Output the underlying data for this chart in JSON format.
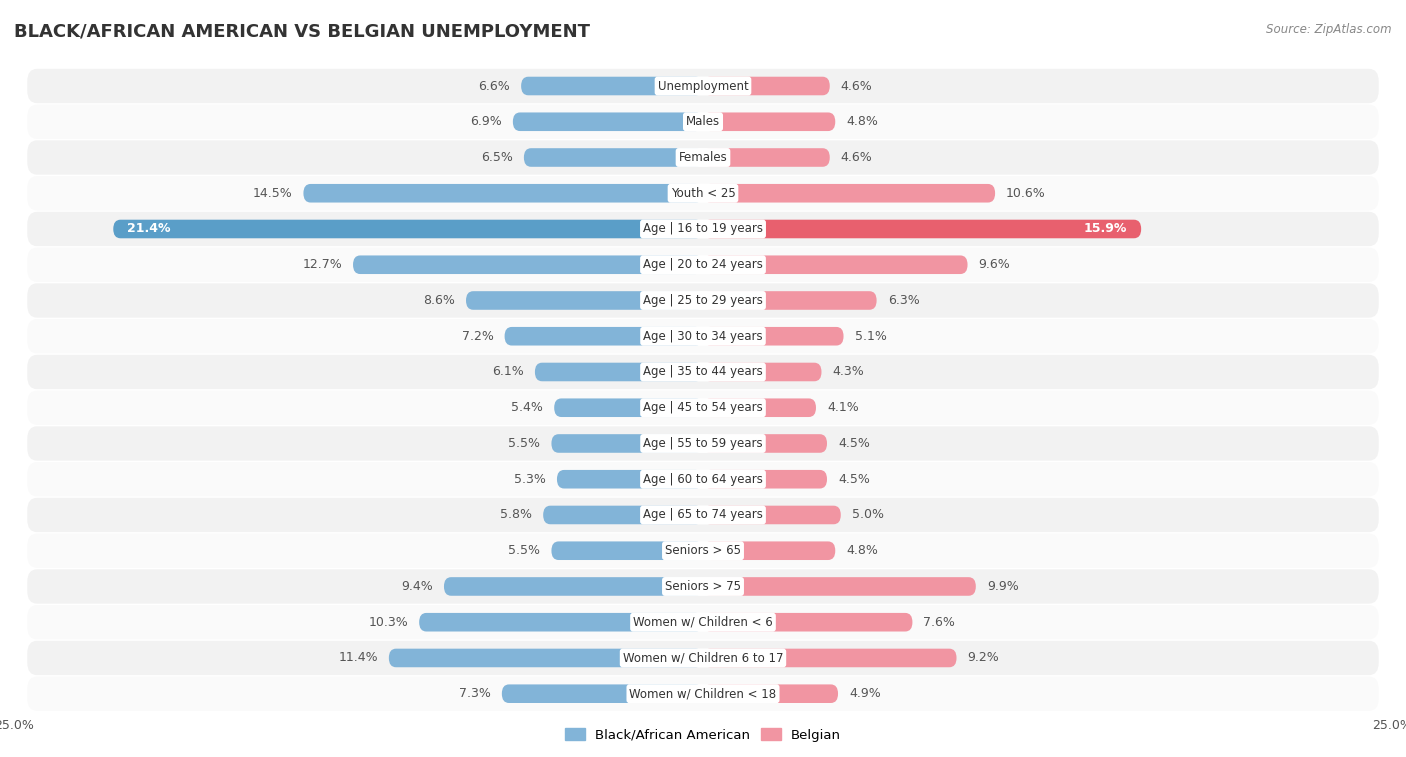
{
  "title": "BLACK/AFRICAN AMERICAN VS BELGIAN UNEMPLOYMENT",
  "source": "Source: ZipAtlas.com",
  "categories": [
    "Unemployment",
    "Males",
    "Females",
    "Youth < 25",
    "Age | 16 to 19 years",
    "Age | 20 to 24 years",
    "Age | 25 to 29 years",
    "Age | 30 to 34 years",
    "Age | 35 to 44 years",
    "Age | 45 to 54 years",
    "Age | 55 to 59 years",
    "Age | 60 to 64 years",
    "Age | 65 to 74 years",
    "Seniors > 65",
    "Seniors > 75",
    "Women w/ Children < 6",
    "Women w/ Children 6 to 17",
    "Women w/ Children < 18"
  ],
  "black_values": [
    6.6,
    6.9,
    6.5,
    14.5,
    21.4,
    12.7,
    8.6,
    7.2,
    6.1,
    5.4,
    5.5,
    5.3,
    5.8,
    5.5,
    9.4,
    10.3,
    11.4,
    7.3
  ],
  "belgian_values": [
    4.6,
    4.8,
    4.6,
    10.6,
    15.9,
    9.6,
    6.3,
    5.1,
    4.3,
    4.1,
    4.5,
    4.5,
    5.0,
    4.8,
    9.9,
    7.6,
    9.2,
    4.9
  ],
  "black_color": "#82B4D8",
  "belgian_color": "#F195A2",
  "highlight_black_color": "#5A9EC8",
  "highlight_belgian_color": "#E8606E",
  "highlight_rows": [
    "Age | 16 to 19 years"
  ],
  "axis_limit": 25.0,
  "bar_height": 0.52,
  "bg_color": "#ffffff",
  "row_bg_even": "#f2f2f2",
  "row_bg_odd": "#fafafa",
  "legend_label_black": "Black/African American",
  "legend_label_belgian": "Belgian",
  "value_label_fontsize": 9.0,
  "cat_label_fontsize": 8.5,
  "title_fontsize": 13
}
